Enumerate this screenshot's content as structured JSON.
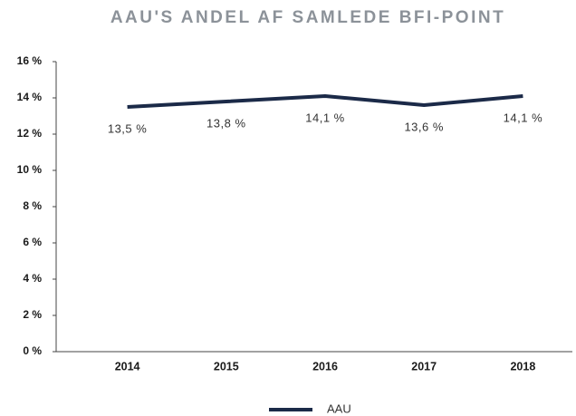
{
  "chart_data": {
    "type": "line",
    "title": "AAU'S ANDEL AF SAMLEDE BFI-POINT",
    "categories": [
      "2014",
      "2015",
      "2016",
      "2017",
      "2018"
    ],
    "series": [
      {
        "name": "AAU",
        "color": "#1b2a48",
        "values": [
          13.5,
          13.8,
          14.1,
          13.6,
          14.1
        ],
        "value_labels": [
          "13,5 %",
          "13,8 %",
          "14,1 %",
          "13,6 %",
          "14,1 %"
        ]
      }
    ],
    "ylim": [
      0,
      16
    ],
    "yticks": [
      {
        "value": 0,
        "label": "0 %"
      },
      {
        "value": 2,
        "label": "2 %"
      },
      {
        "value": 4,
        "label": "4 %"
      },
      {
        "value": 6,
        "label": "6 %"
      },
      {
        "value": 8,
        "label": "8 %"
      },
      {
        "value": 10,
        "label": "10 %"
      },
      {
        "value": 12,
        "label": "12 %"
      },
      {
        "value": 14,
        "label": "14 %"
      },
      {
        "value": 16,
        "label": "16 %"
      }
    ],
    "legend": "bottom"
  }
}
